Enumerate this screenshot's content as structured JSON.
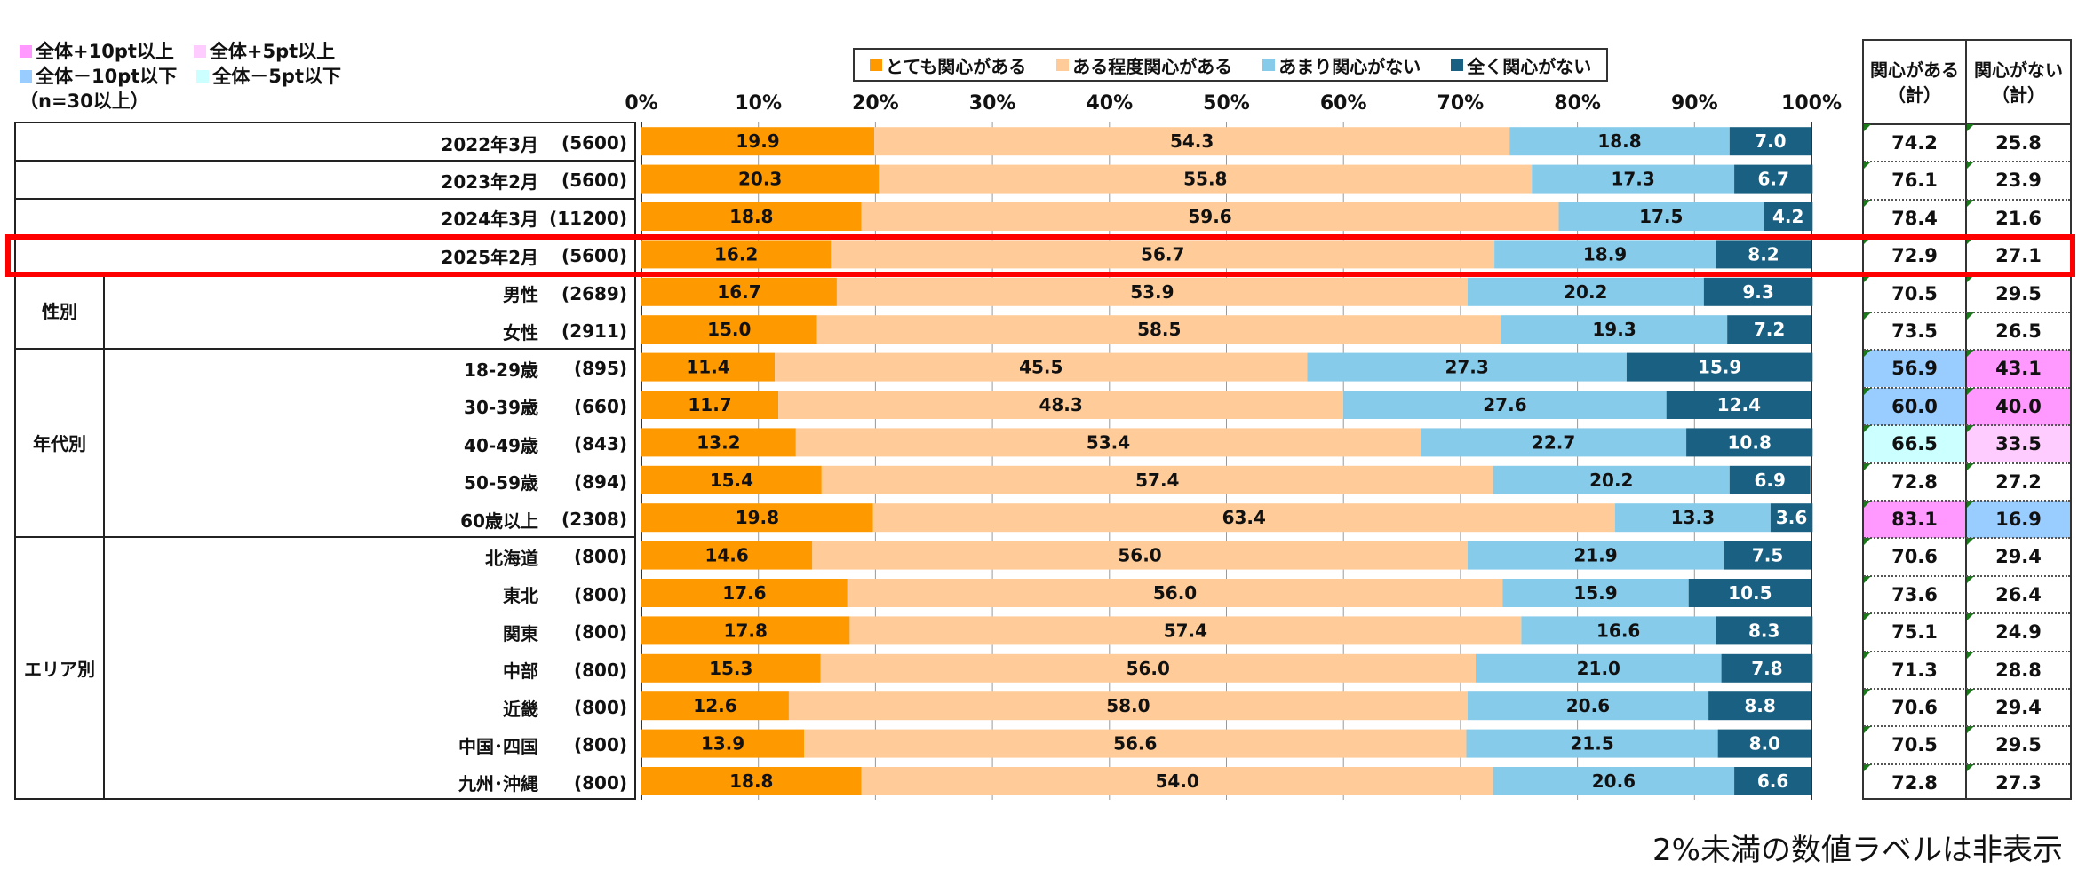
{
  "highlight_legend": {
    "items": [
      {
        "label": "全体+10pt以上",
        "color": "#ff99ff"
      },
      {
        "label": "全体+5pt以上",
        "color": "#ffccff"
      },
      {
        "label": "全体－10pt以下",
        "color": "#99ccff"
      },
      {
        "label": "全体－5pt以下",
        "color": "#ccffff"
      }
    ],
    "note": "（n=30以上）"
  },
  "footnote": "2%未満の数値ラベルは非表示",
  "totals_header": {
    "interested": "関心がある",
    "interested_sub": "（計）",
    "not_interested": "関心がない",
    "not_interested_sub": "（計）"
  },
  "groups": [
    {
      "label": "性別",
      "rows": [
        4,
        5
      ]
    },
    {
      "label": "年代別",
      "rows": [
        6,
        10
      ]
    },
    {
      "label": "エリア別",
      "rows": [
        11,
        17
      ]
    }
  ],
  "chart_data": {
    "type": "bar",
    "orientation": "horizontal-stacked-100",
    "xlim": [
      0,
      100
    ],
    "x_ticks": [
      "0%",
      "10%",
      "20%",
      "30%",
      "40%",
      "50%",
      "60%",
      "70%",
      "80%",
      "90%",
      "100%"
    ],
    "grid": true,
    "legend_position": "top-center",
    "series": [
      {
        "name": "とても関心がある",
        "color": "#ff9900"
      },
      {
        "name": "ある程度関心がある",
        "color": "#ffcc99"
      },
      {
        "name": "あまり関心がない",
        "color": "#87cbea"
      },
      {
        "name": "全く関心がない",
        "color": "#1a6082"
      }
    ],
    "highlighted_row": "2025年2月",
    "rows": [
      {
        "label": "2022年3月",
        "n": "(5600)",
        "values": [
          19.9,
          54.3,
          18.8,
          7.0
        ],
        "interested": "74.2",
        "not_interested": "25.8",
        "hl": [
          null,
          null
        ]
      },
      {
        "label": "2023年2月",
        "n": "(5600)",
        "values": [
          20.3,
          55.8,
          17.3,
          6.7
        ],
        "interested": "76.1",
        "not_interested": "23.9",
        "hl": [
          null,
          null
        ]
      },
      {
        "label": "2024年3月",
        "n": "(11200)",
        "values": [
          18.8,
          59.6,
          17.5,
          4.2
        ],
        "interested": "78.4",
        "not_interested": "21.6",
        "hl": [
          null,
          null
        ]
      },
      {
        "label": "2025年2月",
        "n": "(5600)",
        "values": [
          16.2,
          56.7,
          18.9,
          8.2
        ],
        "interested": "72.9",
        "not_interested": "27.1",
        "hl": [
          null,
          null
        ]
      },
      {
        "label": "男性",
        "n": "(2689)",
        "values": [
          16.7,
          53.9,
          20.2,
          9.3
        ],
        "interested": "70.5",
        "not_interested": "29.5",
        "hl": [
          null,
          null
        ]
      },
      {
        "label": "女性",
        "n": "(2911)",
        "values": [
          15.0,
          58.5,
          19.3,
          7.2
        ],
        "interested": "73.5",
        "not_interested": "26.5",
        "hl": [
          null,
          null
        ]
      },
      {
        "label": "18-29歳",
        "n": "(895)",
        "values": [
          11.4,
          45.5,
          27.3,
          15.9
        ],
        "interested": "56.9",
        "not_interested": "43.1",
        "hl": [
          "#99ccff",
          "#ff99ff"
        ]
      },
      {
        "label": "30-39歳",
        "n": "(660)",
        "values": [
          11.7,
          48.3,
          27.6,
          12.4
        ],
        "interested": "60.0",
        "not_interested": "40.0",
        "hl": [
          "#99ccff",
          "#ff99ff"
        ]
      },
      {
        "label": "40-49歳",
        "n": "(843)",
        "values": [
          13.2,
          53.4,
          22.7,
          10.8
        ],
        "interested": "66.5",
        "not_interested": "33.5",
        "hl": [
          "#ccffff",
          "#ffccff"
        ]
      },
      {
        "label": "50-59歳",
        "n": "(894)",
        "values": [
          15.4,
          57.4,
          20.2,
          6.9
        ],
        "interested": "72.8",
        "not_interested": "27.2",
        "hl": [
          null,
          null
        ]
      },
      {
        "label": "60歳以上",
        "n": "(2308)",
        "values": [
          19.8,
          63.4,
          13.3,
          3.6
        ],
        "interested": "83.1",
        "not_interested": "16.9",
        "hl": [
          "#ff99ff",
          "#99ccff"
        ]
      },
      {
        "label": "北海道",
        "n": "(800)",
        "values": [
          14.6,
          56.0,
          21.9,
          7.5
        ],
        "interested": "70.6",
        "not_interested": "29.4",
        "hl": [
          null,
          null
        ]
      },
      {
        "label": "東北",
        "n": "(800)",
        "values": [
          17.6,
          56.0,
          15.9,
          10.5
        ],
        "interested": "73.6",
        "not_interested": "26.4",
        "hl": [
          null,
          null
        ]
      },
      {
        "label": "関東",
        "n": "(800)",
        "values": [
          17.8,
          57.4,
          16.6,
          8.3
        ],
        "interested": "75.1",
        "not_interested": "24.9",
        "hl": [
          null,
          null
        ]
      },
      {
        "label": "中部",
        "n": "(800)",
        "values": [
          15.3,
          56.0,
          21.0,
          7.8
        ],
        "interested": "71.3",
        "not_interested": "28.8",
        "hl": [
          null,
          null
        ]
      },
      {
        "label": "近畿",
        "n": "(800)",
        "values": [
          12.6,
          58.0,
          20.6,
          8.8
        ],
        "interested": "70.6",
        "not_interested": "29.4",
        "hl": [
          null,
          null
        ]
      },
      {
        "label": "中国･四国",
        "n": "(800)",
        "values": [
          13.9,
          56.6,
          21.5,
          8.0
        ],
        "interested": "70.5",
        "not_interested": "29.5",
        "hl": [
          null,
          null
        ]
      },
      {
        "label": "九州･沖縄",
        "n": "(800)",
        "values": [
          18.8,
          54.0,
          20.6,
          6.6
        ],
        "interested": "72.8",
        "not_interested": "27.3",
        "hl": [
          null,
          null
        ]
      }
    ]
  }
}
